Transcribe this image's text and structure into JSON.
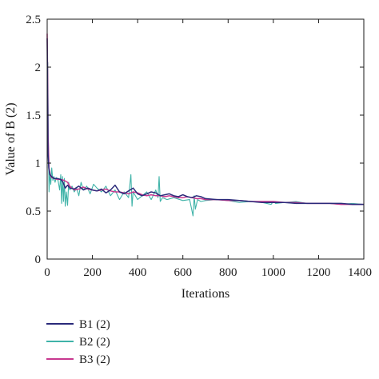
{
  "chart_data": {
    "type": "line",
    "xlabel": "Iterations",
    "ylabel": "Value of B (2)",
    "xlim": [
      0,
      1400
    ],
    "ylim": [
      0,
      2.5
    ],
    "x_ticks": [
      "0",
      "200",
      "400",
      "600",
      "800",
      "1000",
      "1200",
      "1400"
    ],
    "y_ticks": [
      "0",
      "0.5",
      "1",
      "1.5",
      "2",
      "2.5"
    ],
    "grid": false,
    "legend_placement": "bottom-left, below plot",
    "series": [
      {
        "name": "B1 (2)",
        "color": "#2a2a7a",
        "x": [
          0,
          2,
          4,
          7,
          12,
          20,
          30,
          45,
          60,
          70,
          80,
          90,
          100,
          120,
          140,
          160,
          180,
          200,
          220,
          240,
          260,
          280,
          300,
          320,
          340,
          360,
          380,
          400,
          420,
          440,
          460,
          480,
          500,
          520,
          540,
          560,
          580,
          600,
          620,
          640,
          660,
          680,
          700,
          750,
          800,
          850,
          900,
          950,
          1000,
          1050,
          1100,
          1150,
          1200,
          1250,
          1300,
          1350,
          1400
        ],
        "values": [
          2.3,
          1.6,
          1.1,
          0.95,
          0.88,
          0.86,
          0.84,
          0.84,
          0.83,
          0.8,
          0.74,
          0.77,
          0.74,
          0.73,
          0.76,
          0.72,
          0.74,
          0.72,
          0.71,
          0.73,
          0.69,
          0.72,
          0.77,
          0.7,
          0.68,
          0.71,
          0.74,
          0.68,
          0.66,
          0.68,
          0.7,
          0.69,
          0.66,
          0.67,
          0.68,
          0.66,
          0.65,
          0.67,
          0.65,
          0.64,
          0.66,
          0.65,
          0.63,
          0.62,
          0.62,
          0.61,
          0.6,
          0.59,
          0.59,
          0.59,
          0.58,
          0.58,
          0.58,
          0.58,
          0.58,
          0.57,
          0.57
        ]
      },
      {
        "name": "B2 (2)",
        "color": "#3fb3a8",
        "x": [
          0,
          3,
          5,
          8,
          12,
          16,
          20,
          25,
          30,
          35,
          40,
          48,
          55,
          60,
          64,
          68,
          72,
          76,
          80,
          85,
          90,
          95,
          100,
          110,
          120,
          130,
          140,
          150,
          160,
          175,
          190,
          205,
          220,
          240,
          260,
          280,
          300,
          320,
          340,
          360,
          370,
          375,
          380,
          390,
          400,
          420,
          440,
          460,
          480,
          490,
          495,
          500,
          510,
          530,
          560,
          600,
          630,
          645,
          650,
          655,
          665,
          680,
          700,
          750,
          800,
          850,
          900,
          950,
          990,
          1000,
          1010,
          1050,
          1100,
          1150,
          1200,
          1250,
          1300,
          1350,
          1400
        ],
        "values": [
          0.95,
          2.05,
          1.3,
          0.7,
          0.9,
          0.78,
          0.95,
          0.82,
          0.86,
          0.8,
          0.85,
          0.82,
          0.72,
          0.88,
          0.58,
          0.86,
          0.6,
          0.84,
          0.55,
          0.7,
          0.56,
          0.8,
          0.72,
          0.76,
          0.7,
          0.74,
          0.66,
          0.8,
          0.72,
          0.76,
          0.68,
          0.78,
          0.74,
          0.7,
          0.76,
          0.66,
          0.72,
          0.62,
          0.7,
          0.64,
          0.88,
          0.55,
          0.7,
          0.66,
          0.62,
          0.66,
          0.7,
          0.62,
          0.72,
          0.64,
          0.86,
          0.6,
          0.64,
          0.62,
          0.64,
          0.61,
          0.62,
          0.45,
          0.66,
          0.52,
          0.62,
          0.6,
          0.61,
          0.62,
          0.61,
          0.59,
          0.6,
          0.59,
          0.57,
          0.6,
          0.58,
          0.59,
          0.6,
          0.58,
          0.58,
          0.58,
          0.57,
          0.58,
          0.57
        ]
      },
      {
        "name": "B3 (2)",
        "color": "#c8388f",
        "x": [
          0,
          2,
          4,
          8,
          14,
          20,
          30,
          45,
          60,
          75,
          90,
          100,
          120,
          140,
          160,
          180,
          200,
          220,
          240,
          260,
          280,
          300,
          320,
          340,
          360,
          380,
          400,
          420,
          440,
          460,
          480,
          500,
          520,
          540,
          560,
          580,
          600,
          620,
          640,
          660,
          680,
          700,
          750,
          800,
          850,
          900,
          950,
          1000,
          1050,
          1100,
          1150,
          1200,
          1250,
          1300,
          1350,
          1400
        ],
        "values": [
          2.35,
          1.9,
          1.3,
          0.95,
          0.87,
          0.85,
          0.84,
          0.83,
          0.83,
          0.82,
          0.8,
          0.76,
          0.72,
          0.73,
          0.75,
          0.73,
          0.72,
          0.71,
          0.72,
          0.73,
          0.71,
          0.7,
          0.7,
          0.69,
          0.68,
          0.7,
          0.69,
          0.67,
          0.66,
          0.67,
          0.66,
          0.66,
          0.65,
          0.66,
          0.65,
          0.64,
          0.64,
          0.65,
          0.64,
          0.63,
          0.63,
          0.62,
          0.62,
          0.61,
          0.61,
          0.6,
          0.6,
          0.6,
          0.59,
          0.59,
          0.58,
          0.58,
          0.58,
          0.57,
          0.57,
          0.57
        ]
      }
    ]
  }
}
